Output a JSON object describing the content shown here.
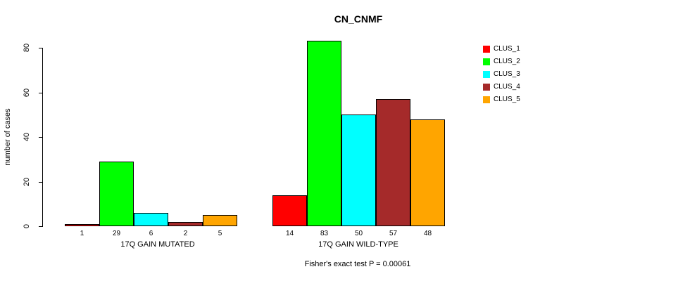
{
  "title": "CN_CNMF",
  "y_axis": {
    "label": "number of cases"
  },
  "annotation": "Fisher's exact test P = 0.00061",
  "chart_data": {
    "type": "bar",
    "title": "CN_CNMF",
    "xlabel": "",
    "ylabel": "number of cases",
    "ylim": [
      0,
      85
    ],
    "yticks": [
      0,
      20,
      40,
      60,
      80
    ],
    "grid": false,
    "legend_position": "right",
    "bar_value_labels": true,
    "groups": [
      "17Q GAIN MUTATED",
      "17Q GAIN WILD-TYPE"
    ],
    "series": [
      {
        "name": "CLUS_1",
        "color": "#FF0000",
        "values": [
          1,
          14
        ]
      },
      {
        "name": "CLUS_2",
        "color": "#00FF00",
        "values": [
          29,
          83
        ]
      },
      {
        "name": "CLUS_3",
        "color": "#00FFFF",
        "values": [
          6,
          50
        ]
      },
      {
        "name": "CLUS_4",
        "color": "#A52A2A",
        "values": [
          2,
          57
        ]
      },
      {
        "name": "CLUS_5",
        "color": "#FFA500",
        "values": [
          5,
          48
        ]
      }
    ],
    "annotation": "Fisher's exact test P = 0.00061"
  }
}
